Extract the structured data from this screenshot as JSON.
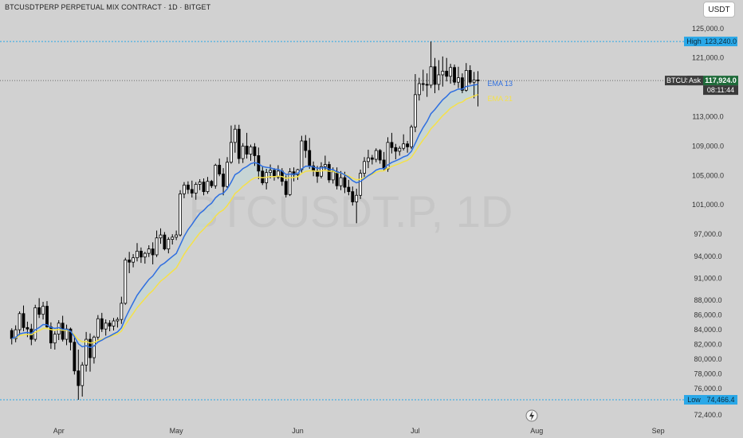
{
  "header": {
    "title": "BTCUSDTPERP PERPETUAL MIX CONTRACT · 1D · BITGET",
    "currency": "USDT"
  },
  "watermark": "BTCUSDT.P, 1D",
  "colors": {
    "background": "#d1d1d1",
    "candle": "#000000",
    "ema13": "#2f6fe0",
    "ema21": "#f5e14a",
    "ribbon": "#c4d6d6",
    "high_low_line": "#2aa8e8",
    "high_low_tag": "#2aa8e8",
    "price_tag": "#1f6b3a",
    "timer_tag": "#3a3a3a",
    "price_line": "#4a4a4a"
  },
  "chart_data": {
    "type": "candlestick",
    "y_axis": {
      "range": [
        71000,
        126500
      ],
      "ticks": [
        "125,000.0",
        "121,000.0",
        "113,000.0",
        "109,000.0",
        "105,000.0",
        "101,000.0",
        "97,000.0",
        "94,000.0",
        "91,000.0",
        "88,000.0",
        "86,000.0",
        "84,000.0",
        "82,000.0",
        "80,000.0",
        "78,000.0",
        "76,000.0",
        "72,400.0"
      ],
      "tick_values": [
        125000,
        121000,
        113000,
        109000,
        105000,
        101000,
        97000,
        94000,
        91000,
        88000,
        86000,
        84000,
        82000,
        80000,
        78000,
        76000,
        72400
      ]
    },
    "x_axis": {
      "labels": [
        "Apr",
        "May",
        "Jun",
        "Jul",
        "Aug",
        "Sep"
      ],
      "label_day_index": [
        12,
        42,
        73,
        103,
        134,
        165
      ],
      "visible_days": [
        -3,
        172
      ]
    },
    "high": {
      "label": "High",
      "value": 123240,
      "text": "123,240.0"
    },
    "low": {
      "label": "Low",
      "value": 74466.4,
      "text": "74,466.4"
    },
    "current": {
      "symbol": "BTCUSDT.P",
      "side": "Ask",
      "value": 117924,
      "text": "117,924.0",
      "timer": "08:11:44"
    },
    "series": [
      {
        "name": "EMA 13",
        "color": "#2f6fe0"
      },
      {
        "name": "EMA 21",
        "color": "#f5e14a"
      }
    ],
    "candles": [
      [
        83900,
        84200,
        82000,
        82800
      ],
      [
        82800,
        84600,
        82300,
        84000
      ],
      [
        84000,
        86500,
        83200,
        86200
      ],
      [
        86200,
        87300,
        83800,
        84300
      ],
      [
        84300,
        85100,
        83000,
        84100
      ],
      [
        84100,
        84800,
        81900,
        82700
      ],
      [
        82700,
        87400,
        82400,
        87000
      ],
      [
        87000,
        88300,
        85600,
        86100
      ],
      [
        86100,
        87800,
        85400,
        87200
      ],
      [
        87200,
        87900,
        84200,
        84400
      ],
      [
        84400,
        85000,
        81400,
        82200
      ],
      [
        82200,
        83800,
        81300,
        83400
      ],
      [
        83400,
        85300,
        82600,
        84900
      ],
      [
        84900,
        85900,
        82400,
        82700
      ],
      [
        82700,
        84700,
        81900,
        84100
      ],
      [
        84100,
        84300,
        81200,
        82300
      ],
      [
        82300,
        83300,
        77900,
        78400
      ],
      [
        78400,
        81300,
        74466,
        76400
      ],
      [
        76400,
        79600,
        74900,
        79200
      ],
      [
        79200,
        83700,
        78300,
        82700
      ],
      [
        82700,
        83500,
        78300,
        80200
      ],
      [
        80200,
        83200,
        79400,
        83000
      ],
      [
        83000,
        86000,
        82500,
        85500
      ],
      [
        85500,
        86300,
        83700,
        84100
      ],
      [
        84100,
        85400,
        83200,
        84900
      ],
      [
        84900,
        85300,
        83800,
        84500
      ],
      [
        84500,
        85600,
        83900,
        85200
      ],
      [
        85200,
        85700,
        84300,
        85400
      ],
      [
        85400,
        88500,
        84800,
        87600
      ],
      [
        87600,
        93800,
        87400,
        93500
      ],
      [
        93500,
        94600,
        91700,
        93200
      ],
      [
        93200,
        94300,
        92500,
        93800
      ],
      [
        93800,
        95800,
        93300,
        94700
      ],
      [
        94700,
        95200,
        93100,
        93900
      ],
      [
        93900,
        94600,
        93000,
        94400
      ],
      [
        94400,
        95500,
        93900,
        95000
      ],
      [
        95000,
        95900,
        92900,
        94200
      ],
      [
        94200,
        97500,
        93900,
        96500
      ],
      [
        96500,
        97800,
        95700,
        96900
      ],
      [
        96900,
        97300,
        94800,
        95000
      ],
      [
        95000,
        96600,
        94400,
        96300
      ],
      [
        96300,
        97000,
        95600,
        96600
      ],
      [
        96600,
        97500,
        96200,
        96900
      ],
      [
        96900,
        103000,
        96700,
        102500
      ],
      [
        102500,
        104100,
        101900,
        103700
      ],
      [
        103700,
        104200,
        102500,
        103100
      ],
      [
        103100,
        104300,
        102000,
        102600
      ],
      [
        102600,
        104100,
        101700,
        103800
      ],
      [
        103800,
        104500,
        103000,
        104100
      ],
      [
        104100,
        104600,
        102300,
        102800
      ],
      [
        102800,
        104800,
        102500,
        104200
      ],
      [
        104200,
        104400,
        103300,
        103600
      ],
      [
        103600,
        106600,
        103200,
        106400
      ],
      [
        106400,
        107300,
        104900,
        105200
      ],
      [
        105200,
        106000,
        102300,
        103500
      ],
      [
        103500,
        107500,
        103300,
        106800
      ],
      [
        106800,
        111800,
        106600,
        109500
      ],
      [
        109500,
        111900,
        108100,
        111300
      ],
      [
        111300,
        111900,
        106600,
        107300
      ],
      [
        107300,
        109400,
        106700,
        109000
      ],
      [
        109000,
        110800,
        107300,
        107900
      ],
      [
        107900,
        109200,
        107000,
        108900
      ],
      [
        108900,
        109400,
        106300,
        107700
      ],
      [
        107700,
        108800,
        104500,
        105600
      ],
      [
        105600,
        106300,
        103700,
        104000
      ],
      [
        104000,
        105900,
        103100,
        105400
      ],
      [
        105400,
        106500,
        104600,
        105700
      ],
      [
        105700,
        106000,
        104300,
        104800
      ],
      [
        104800,
        106400,
        104500,
        105600
      ],
      [
        105600,
        106000,
        103600,
        104200
      ],
      [
        104200,
        105000,
        102000,
        102400
      ],
      [
        102400,
        106000,
        102200,
        105500
      ],
      [
        105500,
        106100,
        104200,
        105100
      ],
      [
        105100,
        105900,
        104400,
        105800
      ],
      [
        105800,
        110400,
        105400,
        109700
      ],
      [
        109700,
        110500,
        107400,
        108400
      ],
      [
        108400,
        110100,
        105900,
        106300
      ],
      [
        106300,
        106900,
        104900,
        105600
      ],
      [
        105600,
        106300,
        104000,
        104900
      ],
      [
        104900,
        106800,
        104600,
        106200
      ],
      [
        106200,
        107700,
        105700,
        106500
      ],
      [
        106500,
        106900,
        104000,
        104400
      ],
      [
        104400,
        106100,
        103900,
        105500
      ],
      [
        105500,
        106100,
        103100,
        103600
      ],
      [
        103600,
        105600,
        103000,
        104700
      ],
      [
        104700,
        105500,
        102600,
        103400
      ],
      [
        103400,
        104400,
        102300,
        102800
      ],
      [
        102800,
        103500,
        100900,
        101400
      ],
      [
        101400,
        103200,
        98500,
        102300
      ],
      [
        102300,
        105800,
        101800,
        105300
      ],
      [
        105300,
        107500,
        104600,
        106900
      ],
      [
        106900,
        108500,
        106000,
        107400
      ],
      [
        107400,
        107800,
        106500,
        107200
      ],
      [
        107200,
        108700,
        106800,
        108400
      ],
      [
        108400,
        108600,
        106600,
        107100
      ],
      [
        107100,
        108200,
        105700,
        105900
      ],
      [
        105900,
        110200,
        105500,
        109500
      ],
      [
        109500,
        110800,
        108000,
        108800
      ],
      [
        108800,
        109300,
        107200,
        108300
      ],
      [
        108300,
        109000,
        107700,
        108700
      ],
      [
        108700,
        110600,
        108400,
        109300
      ],
      [
        109300,
        109700,
        108100,
        108900
      ],
      [
        108900,
        111900,
        108600,
        111600
      ],
      [
        111600,
        118800,
        110900,
        116000
      ],
      [
        116000,
        118300,
        115200,
        117500
      ],
      [
        117500,
        119400,
        116500,
        117400
      ],
      [
        117400,
        118900,
        115700,
        117300
      ],
      [
        117300,
        123240,
        116900,
        119800
      ],
      [
        119800,
        121000,
        116200,
        117400
      ],
      [
        117400,
        120700,
        116600,
        118700
      ],
      [
        118700,
        121200,
        117100,
        119200
      ],
      [
        119200,
        121000,
        117800,
        118500
      ],
      [
        118500,
        120200,
        117500,
        119700
      ],
      [
        119700,
        120100,
        117300,
        117700
      ],
      [
        117700,
        119800,
        116900,
        118300
      ],
      [
        118300,
        118900,
        116200,
        116600
      ],
      [
        116600,
        120300,
        116400,
        119300
      ],
      [
        119300,
        120000,
        117400,
        117700
      ],
      [
        117700,
        119100,
        115500,
        118000
      ],
      [
        118000,
        119200,
        114400,
        117924
      ]
    ]
  }
}
